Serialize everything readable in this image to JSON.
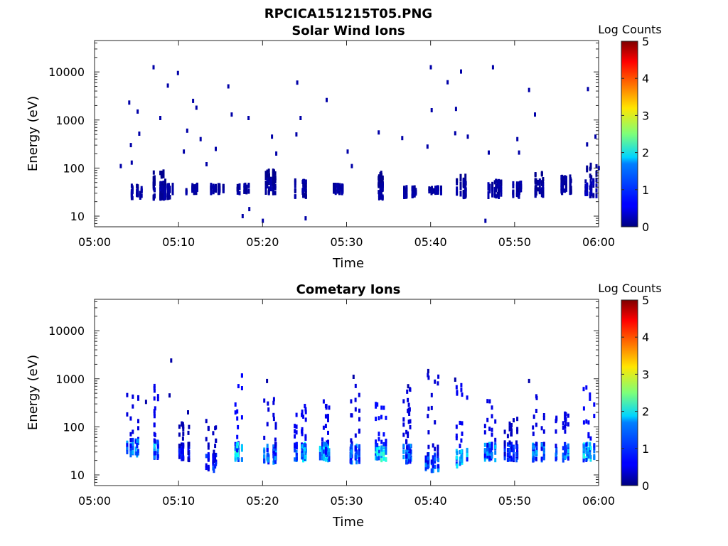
{
  "figure": {
    "title": "RPCICA151215T05.PNG"
  },
  "chart_data": [
    {
      "type": "heatmap",
      "title": "Solar Wind Ions",
      "xlabel": "Time",
      "ylabel": "Energy (eV)",
      "x_ticks": [
        "05:00",
        "05:10",
        "05:20",
        "05:30",
        "05:40",
        "05:50",
        "06:00"
      ],
      "x_range": [
        "05:00",
        "06:00"
      ],
      "y_scale": "log",
      "y_ticks": [
        "10",
        "100",
        "1000",
        "10000"
      ],
      "ylim": [
        6,
        45000
      ],
      "colorbar": {
        "label": "Log Counts",
        "range": [
          0,
          5
        ],
        "ticks": [
          "0",
          "1",
          "2",
          "3",
          "4",
          "5"
        ],
        "colormap": "jet"
      },
      "band_clusters": [
        {
          "t": 4.8,
          "e_min": 23,
          "e_max": 45,
          "level": 0.2
        },
        {
          "t": 7.5,
          "e_min": 23,
          "e_max": 85,
          "level": 0.2
        },
        {
          "t": 8.7,
          "e_min": 23,
          "e_max": 45,
          "level": 0.2
        },
        {
          "t": 11.5,
          "e_min": 30,
          "e_max": 45,
          "level": 0.2
        },
        {
          "t": 14.5,
          "e_min": 30,
          "e_max": 45,
          "level": 0.2
        },
        {
          "t": 17.5,
          "e_min": 30,
          "e_max": 45,
          "level": 0.2
        },
        {
          "t": 20.8,
          "e_min": 30,
          "e_max": 90,
          "level": 0.2
        },
        {
          "t": 24.5,
          "e_min": 25,
          "e_max": 60,
          "level": 0.2
        },
        {
          "t": 29.0,
          "e_min": 30,
          "e_max": 45,
          "level": 0.2
        },
        {
          "t": 34.0,
          "e_min": 23,
          "e_max": 80,
          "level": 0.2
        },
        {
          "t": 37.5,
          "e_min": 25,
          "e_max": 40,
          "level": 0.2
        },
        {
          "t": 40.5,
          "e_min": 30,
          "e_max": 40,
          "level": 0.2
        },
        {
          "t": 43.5,
          "e_min": 25,
          "e_max": 70,
          "level": 0.2
        },
        {
          "t": 47.5,
          "e_min": 25,
          "e_max": 60,
          "level": 0.2
        },
        {
          "t": 50.5,
          "e_min": 25,
          "e_max": 50,
          "level": 0.2
        },
        {
          "t": 53.0,
          "e_min": 25,
          "e_max": 80,
          "level": 0.2
        },
        {
          "t": 56.0,
          "e_min": 30,
          "e_max": 75,
          "level": 0.2
        },
        {
          "t": 59.0,
          "e_min": 25,
          "e_max": 180,
          "level": 0.3
        }
      ],
      "scattered_points": [
        {
          "t": 6.9,
          "e": 12500
        },
        {
          "t": 9.8,
          "e": 9500
        },
        {
          "t": 8.6,
          "e": 5200
        },
        {
          "t": 11.6,
          "e": 2500
        },
        {
          "t": 15.8,
          "e": 5000
        },
        {
          "t": 24.0,
          "e": 6000
        },
        {
          "t": 27.5,
          "e": 2600
        },
        {
          "t": 39.9,
          "e": 12500
        },
        {
          "t": 43.5,
          "e": 10200
        },
        {
          "t": 47.3,
          "e": 12500
        },
        {
          "t": 41.9,
          "e": 6100
        },
        {
          "t": 51.6,
          "e": 4200
        },
        {
          "t": 58.6,
          "e": 4400
        },
        {
          "t": 4.0,
          "e": 2300
        },
        {
          "t": 5.0,
          "e": 1500
        },
        {
          "t": 7.7,
          "e": 1100
        },
        {
          "t": 12.0,
          "e": 1800
        },
        {
          "t": 16.2,
          "e": 1300
        },
        {
          "t": 18.2,
          "e": 1100
        },
        {
          "t": 24.4,
          "e": 1100
        },
        {
          "t": 40.0,
          "e": 1600
        },
        {
          "t": 42.9,
          "e": 1700
        },
        {
          "t": 52.3,
          "e": 1300
        },
        {
          "t": 59.5,
          "e": 450
        },
        {
          "t": 4.2,
          "e": 300
        },
        {
          "t": 5.2,
          "e": 520
        },
        {
          "t": 10.9,
          "e": 600
        },
        {
          "t": 12.5,
          "e": 400
        },
        {
          "t": 14.3,
          "e": 250
        },
        {
          "t": 21.0,
          "e": 450
        },
        {
          "t": 23.9,
          "e": 500
        },
        {
          "t": 33.7,
          "e": 550
        },
        {
          "t": 36.5,
          "e": 420
        },
        {
          "t": 39.5,
          "e": 280
        },
        {
          "t": 42.8,
          "e": 530
        },
        {
          "t": 44.3,
          "e": 450
        },
        {
          "t": 50.2,
          "e": 400
        },
        {
          "t": 58.5,
          "e": 310
        },
        {
          "t": 3.0,
          "e": 110
        },
        {
          "t": 4.3,
          "e": 130
        },
        {
          "t": 10.5,
          "e": 220
        },
        {
          "t": 13.2,
          "e": 120
        },
        {
          "t": 21.5,
          "e": 200
        },
        {
          "t": 30.0,
          "e": 220
        },
        {
          "t": 30.5,
          "e": 110
        },
        {
          "t": 46.8,
          "e": 210
        },
        {
          "t": 50.4,
          "e": 210
        },
        {
          "t": 59.9,
          "e": 100
        },
        {
          "t": 17.5,
          "e": 10
        },
        {
          "t": 18.3,
          "e": 14
        },
        {
          "t": 19.9,
          "e": 8
        },
        {
          "t": 25.0,
          "e": 9
        },
        {
          "t": 46.4,
          "e": 8
        }
      ]
    },
    {
      "type": "heatmap",
      "title": "Cometary Ions",
      "xlabel": "Time",
      "ylabel": "Energy (eV)",
      "x_ticks": [
        "05:00",
        "05:10",
        "05:20",
        "05:30",
        "05:40",
        "05:50",
        "06:00"
      ],
      "x_range": [
        "05:00",
        "06:00"
      ],
      "y_scale": "log",
      "y_ticks": [
        "10",
        "100",
        "1000",
        "10000"
      ],
      "ylim": [
        6,
        45000
      ],
      "colorbar": {
        "label": "Log Counts",
        "range": [
          0,
          5
        ],
        "ticks": [
          "0",
          "1",
          "2",
          "3",
          "4",
          "5"
        ],
        "colormap": "jet"
      },
      "band_clusters": [
        {
          "t": 4.5,
          "e_min": 25,
          "e_max": 600,
          "level": 1.3
        },
        {
          "t": 7.2,
          "e_min": 22,
          "e_max": 900,
          "level": 1.5
        },
        {
          "t": 10.5,
          "e_min": 20,
          "e_max": 120,
          "level": 0.7
        },
        {
          "t": 13.8,
          "e_min": 12,
          "e_max": 200,
          "level": 0.9
        },
        {
          "t": 17.3,
          "e_min": 20,
          "e_max": 1300,
          "level": 1.8
        },
        {
          "t": 20.8,
          "e_min": 18,
          "e_max": 400,
          "level": 1.3
        },
        {
          "t": 24.3,
          "e_min": 20,
          "e_max": 450,
          "level": 1.6
        },
        {
          "t": 27.5,
          "e_min": 20,
          "e_max": 350,
          "level": 1.5
        },
        {
          "t": 30.8,
          "e_min": 18,
          "e_max": 1100,
          "level": 1.3
        },
        {
          "t": 33.8,
          "e_min": 20,
          "e_max": 300,
          "level": 1.9
        },
        {
          "t": 37.0,
          "e_min": 18,
          "e_max": 650,
          "level": 1.3
        },
        {
          "t": 40.0,
          "e_min": 12,
          "e_max": 1400,
          "level": 1.2
        },
        {
          "t": 43.5,
          "e_min": 15,
          "e_max": 900,
          "level": 1.6
        },
        {
          "t": 46.8,
          "e_min": 20,
          "e_max": 350,
          "level": 1.4
        },
        {
          "t": 49.5,
          "e_min": 20,
          "e_max": 150,
          "level": 0.9
        },
        {
          "t": 52.6,
          "e_min": 20,
          "e_max": 800,
          "level": 1.3
        },
        {
          "t": 55.5,
          "e_min": 20,
          "e_max": 200,
          "level": 1.4
        },
        {
          "t": 58.8,
          "e_min": 20,
          "e_max": 1100,
          "level": 1.7
        }
      ],
      "scattered_points": [
        {
          "t": 9.0,
          "e": 2400
        },
        {
          "t": 11.0,
          "e": 200
        },
        {
          "t": 20.4,
          "e": 900
        },
        {
          "t": 30.7,
          "e": 1100
        },
        {
          "t": 39.6,
          "e": 1450
        },
        {
          "t": 42.8,
          "e": 960
        },
        {
          "t": 51.6,
          "e": 900
        },
        {
          "t": 37.2,
          "e": 700
        },
        {
          "t": 6.0,
          "e": 330
        },
        {
          "t": 8.8,
          "e": 450
        }
      ]
    }
  ]
}
